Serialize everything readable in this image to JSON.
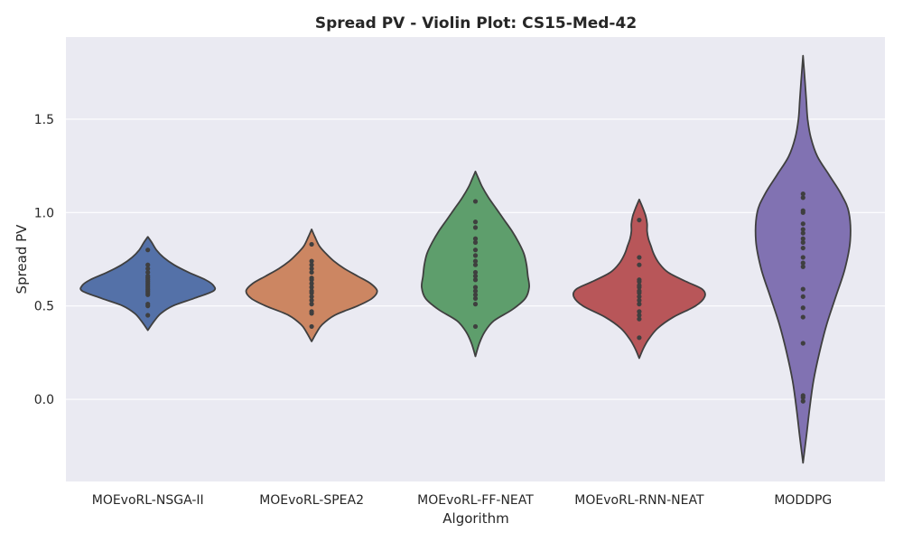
{
  "chart_data": {
    "type": "violin",
    "title": "Spread PV - Violin Plot: CS15-Med-42",
    "xlabel": "Algorithm",
    "ylabel": "Spread PV",
    "ylim": [
      -0.44,
      1.94
    ],
    "yticks": [
      0.0,
      0.5,
      1.0,
      1.5
    ],
    "ytick_labels": [
      "0.0",
      "0.5",
      "1.0",
      "1.5"
    ],
    "grid": true,
    "background": "#eaeaf2",
    "grid_color": "#ffffff",
    "outline_color": "#3f3f3f",
    "categories": [
      "MOEvoRL-NSGA-II",
      "MOEvoRL-SPEA2",
      "MOEvoRL-FF-NEAT",
      "MOEvoRL-RNN-NEAT",
      "MODDPG"
    ],
    "series": [
      {
        "category": "MOEvoRL-NSGA-II",
        "color": "#5471a8",
        "points": [
          0.45,
          0.5,
          0.51,
          0.56,
          0.57,
          0.58,
          0.59,
          0.6,
          0.61,
          0.62,
          0.63,
          0.64,
          0.65,
          0.66,
          0.68,
          0.7,
          0.72,
          0.8
        ],
        "violin": {
          "y": [
            0.37,
            0.42,
            0.46,
            0.5,
            0.54,
            0.58,
            0.61,
            0.64,
            0.68,
            0.72,
            0.76,
            0.8,
            0.84,
            0.87
          ],
          "half_width": [
            0.0,
            0.1,
            0.2,
            0.38,
            0.7,
            1.0,
            1.0,
            0.88,
            0.62,
            0.4,
            0.24,
            0.13,
            0.06,
            0.0
          ]
        }
      },
      {
        "category": "MOEvoRL-SPEA2",
        "color": "#cc8662",
        "points": [
          0.39,
          0.46,
          0.47,
          0.51,
          0.53,
          0.55,
          0.57,
          0.58,
          0.6,
          0.62,
          0.64,
          0.65,
          0.68,
          0.7,
          0.72,
          0.74,
          0.83
        ],
        "violin": {
          "y": [
            0.31,
            0.36,
            0.4,
            0.45,
            0.5,
            0.54,
            0.58,
            0.62,
            0.66,
            0.7,
            0.74,
            0.78,
            0.82,
            0.87,
            0.91
          ],
          "half_width": [
            0.0,
            0.08,
            0.16,
            0.35,
            0.7,
            0.92,
            1.0,
            0.9,
            0.7,
            0.5,
            0.34,
            0.22,
            0.12,
            0.05,
            0.0
          ]
        }
      },
      {
        "category": "MOEvoRL-FF-NEAT",
        "color": "#5e9e6c",
        "points": [
          0.39,
          0.51,
          0.54,
          0.56,
          0.58,
          0.6,
          0.64,
          0.66,
          0.68,
          0.72,
          0.74,
          0.77,
          0.8,
          0.84,
          0.86,
          0.92,
          0.95,
          1.06
        ],
        "violin": {
          "y": [
            0.23,
            0.3,
            0.36,
            0.42,
            0.48,
            0.54,
            0.6,
            0.66,
            0.72,
            0.78,
            0.84,
            0.9,
            0.96,
            1.02,
            1.08,
            1.14,
            1.18,
            1.22
          ],
          "half_width": [
            0.0,
            0.06,
            0.14,
            0.28,
            0.56,
            0.76,
            0.82,
            0.8,
            0.78,
            0.74,
            0.66,
            0.56,
            0.44,
            0.32,
            0.2,
            0.1,
            0.05,
            0.0
          ]
        }
      },
      {
        "category": "MOEvoRL-RNN-NEAT",
        "color": "#b85659",
        "points": [
          0.33,
          0.43,
          0.45,
          0.47,
          0.51,
          0.53,
          0.55,
          0.57,
          0.58,
          0.6,
          0.61,
          0.63,
          0.64,
          0.72,
          0.76,
          0.96
        ],
        "violin": {
          "y": [
            0.22,
            0.27,
            0.32,
            0.38,
            0.44,
            0.5,
            0.55,
            0.59,
            0.63,
            0.68,
            0.73,
            0.78,
            0.82,
            0.86,
            0.9,
            0.94,
            0.98,
            1.02,
            1.07
          ],
          "half_width": [
            0.0,
            0.06,
            0.14,
            0.28,
            0.52,
            0.86,
            1.0,
            0.96,
            0.72,
            0.44,
            0.3,
            0.22,
            0.18,
            0.14,
            0.12,
            0.12,
            0.1,
            0.06,
            0.0
          ]
        }
      },
      {
        "category": "MODDPG",
        "color": "#8172b2",
        "points": [
          -0.01,
          0.01,
          0.02,
          0.3,
          0.44,
          0.49,
          0.55,
          0.59,
          0.71,
          0.73,
          0.76,
          0.81,
          0.84,
          0.86,
          0.89,
          0.91,
          0.94,
          1.0,
          1.01,
          1.08,
          1.1
        ],
        "violin": {
          "y": [
            -0.34,
            -0.2,
            -0.05,
            0.1,
            0.25,
            0.4,
            0.55,
            0.7,
            0.85,
            1.0,
            1.1,
            1.2,
            1.3,
            1.4,
            1.5,
            1.6,
            1.7,
            1.84
          ],
          "half_width": [
            0.0,
            0.05,
            0.1,
            0.16,
            0.25,
            0.36,
            0.5,
            0.64,
            0.72,
            0.7,
            0.58,
            0.4,
            0.22,
            0.12,
            0.07,
            0.05,
            0.03,
            0.0
          ]
        }
      }
    ]
  }
}
